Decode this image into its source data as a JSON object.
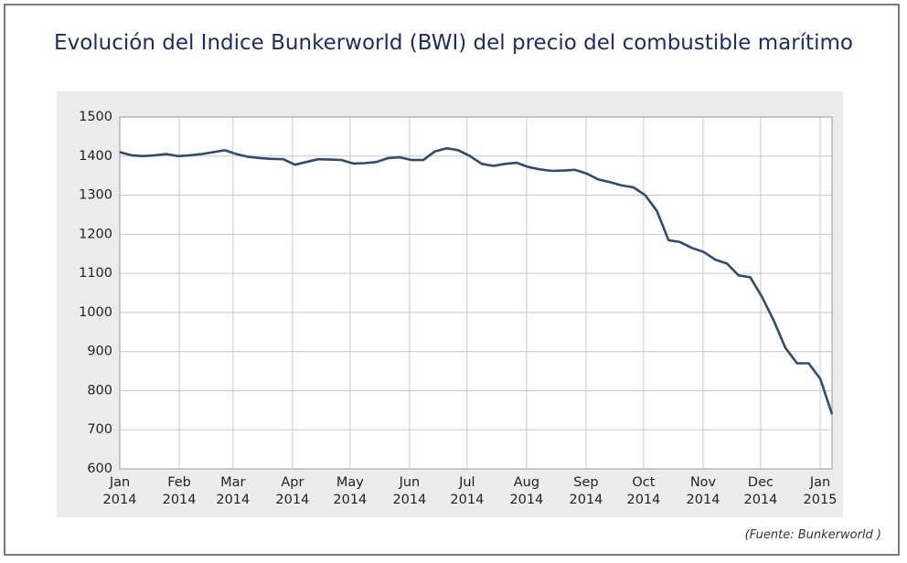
{
  "title": "Evolución del Indice Bunkerworld (BWI) del precio del combustible marítimo",
  "source": "(Fuente: Bunkerworld )",
  "chart_data": {
    "type": "line",
    "color": "#2e4a78",
    "grid": true,
    "values": [
      1410,
      1402,
      1400,
      1402,
      1405,
      1400,
      1402,
      1405,
      1410,
      1415,
      1405,
      1398,
      1395,
      1393,
      1392,
      1378,
      1385,
      1392,
      1391,
      1390,
      1381,
      1382,
      1385,
      1395,
      1397,
      1390,
      1390,
      1412,
      1420,
      1415,
      1400,
      1380,
      1375,
      1380,
      1383,
      1372,
      1366,
      1362,
      1363,
      1365,
      1355,
      1340,
      1333,
      1325,
      1320,
      1300,
      1260,
      1185,
      1180,
      1165,
      1155,
      1135,
      1125,
      1095,
      1090,
      1040,
      980,
      910,
      870,
      870,
      830,
      740
    ],
    "ylim": [
      600,
      1500
    ],
    "yticks": [
      600,
      700,
      800,
      900,
      1000,
      1100,
      1200,
      1300,
      1400,
      1500
    ],
    "xlim": [
      "2014-01",
      "2015-01"
    ],
    "xticks": [
      {
        "value": "2014-01",
        "label": "Jan\n2014"
      },
      {
        "value": "2014-02",
        "label": "Feb\n2014"
      },
      {
        "value": "2014-03",
        "label": "Mar\n2014"
      },
      {
        "value": "2014-04",
        "label": "Apr\n2014"
      },
      {
        "value": "2014-05",
        "label": "May\n2014"
      },
      {
        "value": "2014-06",
        "label": "Jun\n2014"
      },
      {
        "value": "2014-07",
        "label": "Jul\n2014"
      },
      {
        "value": "2014-08",
        "label": "Aug\n2014"
      },
      {
        "value": "2014-09",
        "label": "Sep\n2014"
      },
      {
        "value": "2014-10",
        "label": "Oct\n2014"
      },
      {
        "value": "2014-11",
        "label": "Nov\n2014"
      },
      {
        "value": "2014-12",
        "label": "Dec\n2014"
      },
      {
        "value": "2015-01",
        "label": "Jan\n2015"
      }
    ]
  }
}
